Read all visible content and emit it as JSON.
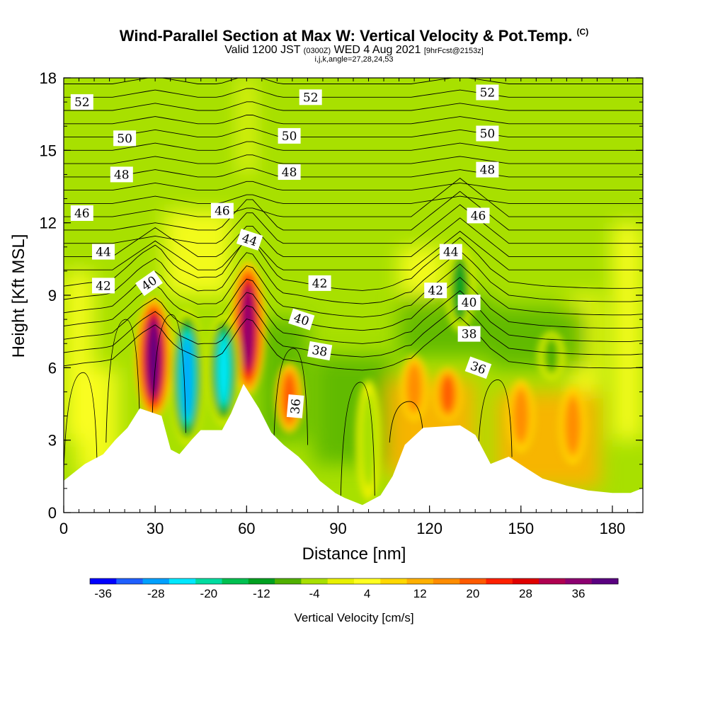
{
  "chart_data": {
    "type": "heatmap",
    "title": "Wind-Parallel Section at Max W: Vertical Velocity & Pot.Temp.",
    "title_mark": "(C)",
    "subtitle_a": "Valid 1200 JST",
    "subtitle_b": "(0300Z)",
    "subtitle_c": "WED 4 Aug 2021",
    "subtitle_d": "[9hrFcst@2153z]",
    "subtitle2": "i,j,k,angle=27,28,24,53",
    "xlabel": "Distance [nm]",
    "ylabel": "Height [Kft MSL]",
    "xlim": [
      0,
      190
    ],
    "ylim": [
      0,
      18
    ],
    "x_ticks": [
      0,
      30,
      60,
      90,
      120,
      150,
      180
    ],
    "y_ticks": [
      0,
      3,
      6,
      9,
      12,
      15,
      18
    ],
    "colorbar": {
      "label": "Vertical Velocity [cm/s]",
      "tick_labels": [
        "-36",
        "-28",
        "-20",
        "-12",
        "-4",
        "4",
        "12",
        "20",
        "28",
        "36"
      ],
      "colors": [
        "#0000ff",
        "#1f5fff",
        "#00a0ff",
        "#00e8ff",
        "#00dca0",
        "#00c050",
        "#00a020",
        "#50b000",
        "#a8e000",
        "#e8f000",
        "#ffff20",
        "#ffd800",
        "#ffb000",
        "#ff8c00",
        "#ff5a00",
        "#ff2000",
        "#e00000",
        "#b00050",
        "#8c0070",
        "#5a0080"
      ]
    },
    "background_color": "#a8e000",
    "updraft_cores": [
      {
        "x": 29.5,
        "zmin": 3.9,
        "zmax": 8.9,
        "w": 36
      },
      {
        "x": 60.5,
        "zmin": 4.9,
        "zmax": 10.4,
        "w": 30
      },
      {
        "x": 74,
        "zmin": 3.3,
        "zmax": 6.2,
        "w": 14
      },
      {
        "x": 115,
        "zmin": 3.8,
        "zmax": 6.5,
        "w": 12
      },
      {
        "x": 126,
        "zmin": 3.8,
        "zmax": 6.0,
        "w": 14
      },
      {
        "x": 150,
        "zmin": 2.5,
        "zmax": 5.5,
        "w": 12
      },
      {
        "x": 167,
        "zmin": 2.0,
        "zmax": 5.2,
        "w": 12
      }
    ],
    "downdraft_cores": [
      {
        "x": 40.5,
        "zmin": 2.8,
        "zmax": 8.4,
        "w": -30
      },
      {
        "x": 52.5,
        "zmin": 3.6,
        "zmax": 8.2,
        "w": -26
      },
      {
        "x": 100,
        "zmin": 0.5,
        "zmax": 5.5,
        "w": -6
      },
      {
        "x": 130,
        "zmin": 7.5,
        "zmax": 11.0,
        "w": -16
      },
      {
        "x": 160,
        "zmin": 5.5,
        "zmax": 7.5,
        "w": -12
      }
    ],
    "terrain": [
      [
        0,
        1.3
      ],
      [
        3,
        1.6
      ],
      [
        7,
        2.0
      ],
      [
        13,
        2.4
      ],
      [
        17,
        3.0
      ],
      [
        21,
        3.5
      ],
      [
        25,
        4.3
      ],
      [
        32,
        4.0
      ],
      [
        35,
        2.6
      ],
      [
        38,
        2.4
      ],
      [
        42,
        3.0
      ],
      [
        45,
        3.4
      ],
      [
        52,
        3.4
      ],
      [
        55,
        4.1
      ],
      [
        59,
        5.3
      ],
      [
        64,
        4.3
      ],
      [
        68,
        3.3
      ],
      [
        72,
        2.8
      ],
      [
        77,
        2.3
      ],
      [
        80,
        1.9
      ],
      [
        84,
        1.3
      ],
      [
        89,
        0.8
      ],
      [
        92,
        0.6
      ],
      [
        98,
        0.3
      ],
      [
        104,
        0.7
      ],
      [
        108,
        1.5
      ],
      [
        112,
        2.8
      ],
      [
        118,
        3.5
      ],
      [
        130,
        3.6
      ],
      [
        135,
        3.2
      ],
      [
        140,
        2.0
      ],
      [
        146,
        2.3
      ],
      [
        152,
        1.8
      ],
      [
        157,
        1.4
      ],
      [
        165,
        1.1
      ],
      [
        172,
        0.9
      ],
      [
        180,
        0.8
      ],
      [
        186,
        0.8
      ],
      [
        190,
        1.0
      ]
    ],
    "theta_contour_labels": [
      {
        "text": "52",
        "x": 6,
        "z": 17.0,
        "angle": 0
      },
      {
        "text": "52",
        "x": 81,
        "z": 17.2,
        "angle": 0
      },
      {
        "text": "52",
        "x": 139,
        "z": 17.4,
        "angle": 0
      },
      {
        "text": "50",
        "x": 20,
        "z": 15.5,
        "angle": 0
      },
      {
        "text": "50",
        "x": 74,
        "z": 15.6,
        "angle": 0
      },
      {
        "text": "50",
        "x": 139,
        "z": 15.7,
        "angle": 0
      },
      {
        "text": "48",
        "x": 19,
        "z": 14.0,
        "angle": 0
      },
      {
        "text": "48",
        "x": 74,
        "z": 14.1,
        "angle": 0
      },
      {
        "text": "48",
        "x": 139,
        "z": 14.2,
        "angle": 0
      },
      {
        "text": "46",
        "x": 6,
        "z": 12.4,
        "angle": 0
      },
      {
        "text": "46",
        "x": 52,
        "z": 12.5,
        "angle": 0
      },
      {
        "text": "46",
        "x": 136,
        "z": 12.3,
        "angle": 0
      },
      {
        "text": "44",
        "x": 13,
        "z": 10.8,
        "angle": 0
      },
      {
        "text": "44",
        "x": 61,
        "z": 11.3,
        "angle": 18
      },
      {
        "text": "44",
        "x": 127,
        "z": 10.8,
        "angle": 0
      },
      {
        "text": "42",
        "x": 13,
        "z": 9.4,
        "angle": 0
      },
      {
        "text": "40",
        "x": 28,
        "z": 9.5,
        "angle": -35
      },
      {
        "text": "42",
        "x": 84,
        "z": 9.5,
        "angle": 0
      },
      {
        "text": "42",
        "x": 122,
        "z": 9.2,
        "angle": 0
      },
      {
        "text": "40",
        "x": 78,
        "z": 8.0,
        "angle": 18
      },
      {
        "text": "40",
        "x": 133,
        "z": 8.7,
        "angle": 0
      },
      {
        "text": "38",
        "x": 84,
        "z": 6.7,
        "angle": 10
      },
      {
        "text": "38",
        "x": 133,
        "z": 7.4,
        "angle": 0
      },
      {
        "text": "36",
        "x": 136,
        "z": 6.0,
        "angle": 20
      },
      {
        "text": "36",
        "x": 76,
        "z": 4.4,
        "angle": -85
      }
    ]
  }
}
